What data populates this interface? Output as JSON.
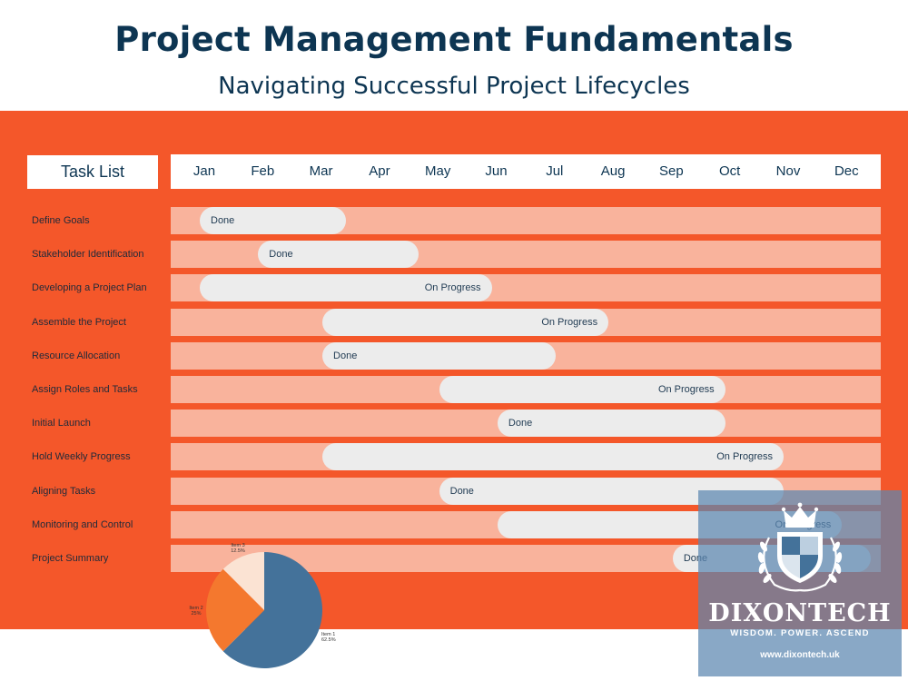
{
  "header": {
    "title": "Project Management Fundamentals",
    "subtitle": "Navigating Successful Project Lifecycles"
  },
  "task_list_label": "Task List",
  "months": [
    "Jan",
    "Feb",
    "Mar",
    "Apr",
    "May",
    "Jun",
    "Jul",
    "Aug",
    "Sep",
    "Oct",
    "Nov",
    "Dec"
  ],
  "tasks": [
    {
      "name": "Define Goals",
      "status": "Done",
      "start": 0.5,
      "end": 3.0
    },
    {
      "name": "Stakeholder Identification",
      "status": "Done",
      "start": 1.5,
      "end": 4.25
    },
    {
      "name": "Developing a Project Plan",
      "status": "On Progress",
      "start": 0.5,
      "end": 5.5
    },
    {
      "name": "Assemble the Project",
      "status": "On Progress",
      "start": 2.6,
      "end": 7.5
    },
    {
      "name": "Resource Allocation",
      "status": "Done",
      "start": 2.6,
      "end": 6.6
    },
    {
      "name": "Assign Roles and Tasks",
      "status": "On Progress",
      "start": 4.6,
      "end": 9.5
    },
    {
      "name": "Initial Launch",
      "status": "Done",
      "start": 5.6,
      "end": 9.5
    },
    {
      "name": "Hold Weekly Progress",
      "status": "On Progress",
      "start": 2.6,
      "end": 10.5
    },
    {
      "name": "Aligning Tasks",
      "status": "Done",
      "start": 4.6,
      "end": 10.5
    },
    {
      "name": "Monitoring and Control",
      "status": "On Progress",
      "start": 5.6,
      "end": 11.5
    },
    {
      "name": "Project Summary",
      "status": "Done",
      "start": 8.6,
      "end": 12.0
    }
  ],
  "chart_data": {
    "type": "pie",
    "slices": [
      {
        "label": "Item 1",
        "percent_label": "62.5%",
        "value": 62.5,
        "color": "#44729a"
      },
      {
        "label": "Item 2",
        "percent_label": "25%",
        "value": 25,
        "color": "#f4782e"
      },
      {
        "label": "Item 3",
        "percent_label": "12.5%",
        "value": 12.5,
        "color": "#fbe3d3"
      }
    ]
  },
  "logo": {
    "name": "DIXONTECH",
    "tagline": "WISDOM. POWER. ASCEND",
    "url": "www.dixontech.uk"
  },
  "colors": {
    "band": "#f4572a",
    "track": "#f9b39c",
    "bar": "#ececec",
    "title": "#0d3552"
  }
}
